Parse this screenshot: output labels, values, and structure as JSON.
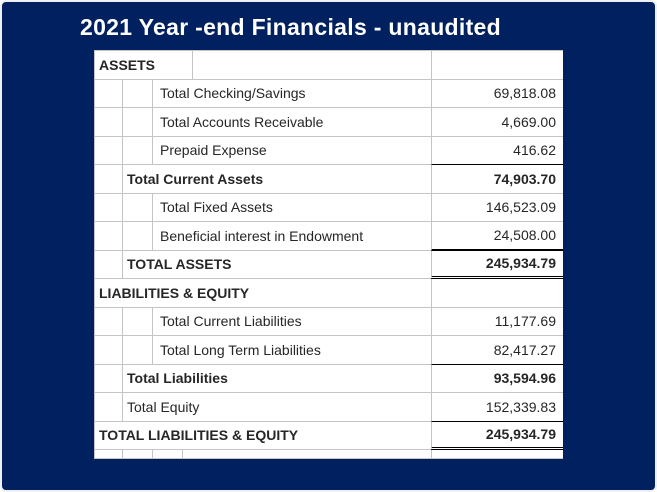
{
  "slide": {
    "title": "2021 Year -end Financials - unaudited",
    "background_color": "#002060",
    "title_color": "#ffffff"
  },
  "table": {
    "grid_color": "#c4c4c4",
    "text_color": "#262626",
    "rule_color": "#000000",
    "rows": [
      {
        "label": "ASSETS",
        "value": ""
      },
      {
        "label": "Total Checking/Savings",
        "value": "69,818.08"
      },
      {
        "label": "Total Accounts Receivable",
        "value": "4,669.00"
      },
      {
        "label": "Prepaid Expense",
        "value": "416.62"
      },
      {
        "label": "Total Current Assets",
        "value": "74,903.70"
      },
      {
        "label": "Total Fixed Assets",
        "value": "146,523.09"
      },
      {
        "label": "Beneficial interest in Endowment",
        "value": "24,508.00"
      },
      {
        "label": "TOTAL ASSETS",
        "value": "245,934.79"
      },
      {
        "label": "LIABILITIES & EQUITY",
        "value": ""
      },
      {
        "label": "Total Current Liabilities",
        "value": "11,177.69"
      },
      {
        "label": "Total Long Term Liabilities",
        "value": "82,417.27"
      },
      {
        "label": "Total Liabilities",
        "value": "93,594.96"
      },
      {
        "label": "Total Equity",
        "value": "152,339.83"
      },
      {
        "label": "TOTAL LIABILITIES & EQUITY",
        "value": "245,934.79"
      }
    ]
  }
}
